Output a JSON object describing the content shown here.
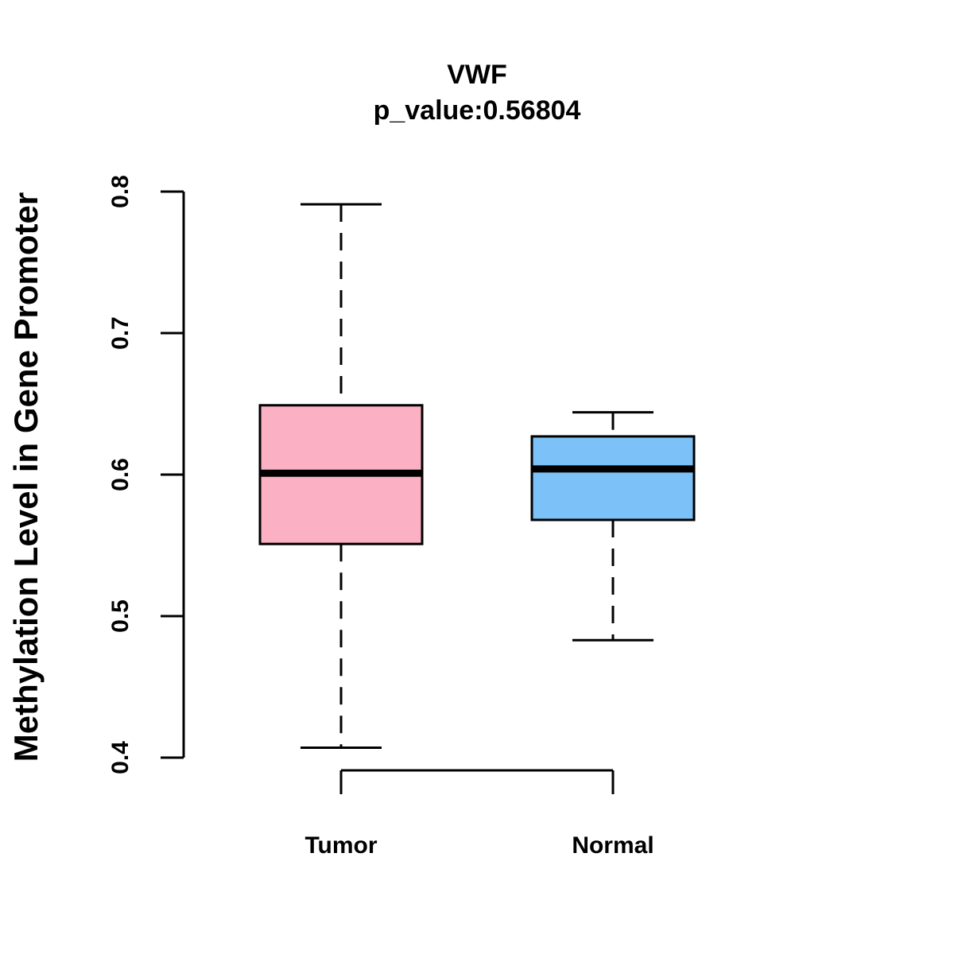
{
  "chart_data": {
    "type": "box",
    "title": "VWF",
    "subtitle": "p_value:0.56804",
    "xlabel": "",
    "ylabel": "Methylation Level in Gene Promoter",
    "ylim": [
      0.4,
      0.8
    ],
    "yticks": [
      0.4,
      0.5,
      0.6,
      0.7,
      0.8
    ],
    "ytick_labels": [
      "0.4",
      "0.5",
      "0.6",
      "0.7",
      "0.8"
    ],
    "grid": false,
    "categories": [
      "Tumor",
      "Normal"
    ],
    "series": [
      {
        "name": "Tumor",
        "whisker_low": 0.407,
        "q1": 0.551,
        "median": 0.601,
        "q3": 0.649,
        "whisker_high": 0.791,
        "color": "#FBB0C4"
      },
      {
        "name": "Normal",
        "whisker_low": 0.483,
        "q1": 0.568,
        "median": 0.604,
        "q3": 0.627,
        "whisker_high": 0.644,
        "color": "#7CC2F8"
      }
    ]
  }
}
